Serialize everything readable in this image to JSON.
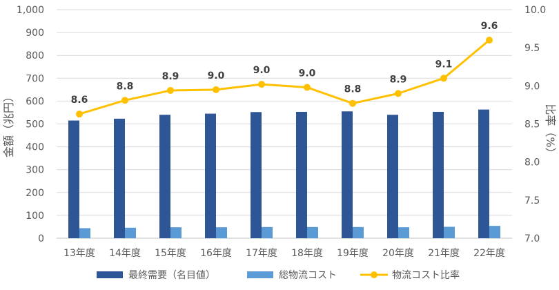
{
  "chart_data": {
    "type": "bar",
    "categories": [
      "13年度",
      "14年度",
      "15年度",
      "16年度",
      "17年度",
      "18年度",
      "19年度",
      "20年度",
      "21年度",
      "22年度"
    ],
    "series": [
      {
        "name": "最終需要（名目値）",
        "type": "bar",
        "axis": "left",
        "color": "#2E5596",
        "values": [
          515,
          523,
          540,
          545,
          552,
          553,
          555,
          540,
          553,
          563
        ]
      },
      {
        "name": "総物流コスト",
        "type": "bar",
        "axis": "left",
        "color": "#5B9BD5",
        "values": [
          44,
          46,
          48,
          48,
          49,
          49,
          49,
          48,
          50,
          54
        ]
      },
      {
        "name": "物流コスト比率",
        "type": "line",
        "axis": "right",
        "color": "#FFC000",
        "values": [
          8.63,
          8.81,
          8.94,
          8.95,
          9.02,
          8.98,
          8.77,
          8.9,
          9.1,
          9.6
        ],
        "labels": [
          "8.6",
          "8.8",
          "8.9",
          "9.0",
          "9.0",
          "9.0",
          "8.8",
          "8.9",
          "9.1",
          "9.6"
        ]
      }
    ],
    "ylabel": "金額（兆円）",
    "y2label": "比率（%）",
    "ylim": [
      0,
      1000
    ],
    "y2lim": [
      7.0,
      10.0
    ],
    "yticks": [
      "0",
      "100",
      "200",
      "300",
      "400",
      "500",
      "600",
      "700",
      "800",
      "900",
      "1,000"
    ],
    "y2ticks": [
      "7.0",
      "7.5",
      "8.0",
      "8.5",
      "9.0",
      "9.5",
      "10.0"
    ],
    "grid": true,
    "legend_position": "bottom"
  }
}
